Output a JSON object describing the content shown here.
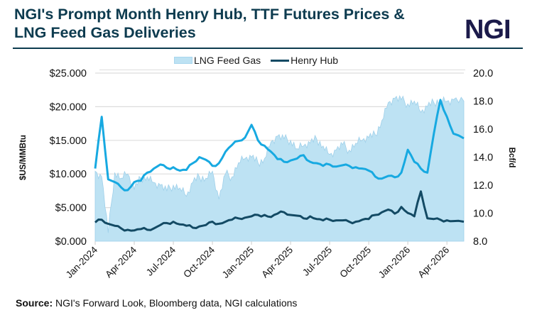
{
  "header": {
    "title_line1": "NGI's Prompt Month Henry Hub, TTF Futures Prices &",
    "title_line2": "LNG Feed Gas Deliveries",
    "logo_text": "NGI"
  },
  "footer": {
    "source_label": "Source:",
    "source_text": " NGI's Forward Look, Bloomberg data, NGI calculations"
  },
  "colors": {
    "title": "#0d3b4f",
    "logo": "#1b1a4a",
    "lng_fill": "#bde2f3",
    "lng_edge": "#9fd0ea",
    "ttf_line": "#17a9e1",
    "henry_hub_line": "#134a64",
    "grid": "#dddddd"
  },
  "chart_data": {
    "type": "line",
    "title": "NGI's Prompt Month Henry Hub, TTF Futures Prices & LNG Feed Gas Deliveries",
    "ylabel": "$US/MMBtu",
    "y2label": "Bcf/d",
    "ylim": [
      0,
      25
    ],
    "y2lim": [
      8,
      20
    ],
    "yticks": [
      "$0.000",
      "$5.000",
      "$10.000",
      "$15.000",
      "$20.000",
      "$25.000"
    ],
    "y2ticks": [
      "8.0",
      "10.0",
      "12.0",
      "14.0",
      "16.0",
      "18.0",
      "20.0"
    ],
    "xticks": [
      "Jan-2024",
      "Apr-2024",
      "Jul-2024",
      "Oct-2024",
      "Jan-2025",
      "Apr-2025",
      "Jul-2025",
      "Oct-2025",
      "Jan-2026",
      "Apr-2026"
    ],
    "grid": true,
    "legend_position": "top",
    "x_unit": "months since Jan-2024",
    "x": [
      0,
      0.5,
      1,
      1.5,
      2,
      2.5,
      3,
      3.5,
      4,
      4.5,
      5,
      5.5,
      6,
      6.5,
      7,
      7.5,
      8,
      8.5,
      9,
      9.5,
      10,
      10.5,
      11,
      11.5,
      12,
      12.5,
      13,
      13.5,
      14,
      14.5,
      15,
      15.5,
      16,
      16.5,
      17,
      17.5,
      18,
      18.5,
      19,
      19.5,
      20,
      20.5,
      21,
      21.5,
      22,
      22.5,
      23,
      23.5,
      24,
      24.5,
      25,
      25.5,
      26,
      26.5,
      27,
      27.5,
      28.3
    ],
    "series": [
      {
        "name": "LNG Feed Gas",
        "legend": "LNG Feed Gas",
        "axis": "right",
        "style": "area",
        "values": [
          13.0,
          12.6,
          8.6,
          12.9,
          12.5,
          12.8,
          11.7,
          12.5,
          12.6,
          12.2,
          12.0,
          11.6,
          12.0,
          11.8,
          11.2,
          12.2,
          12.6,
          12.5,
          13.0,
          11.0,
          12.8,
          12.6,
          13.6,
          13.9,
          14.0,
          13.6,
          13.9,
          15.1,
          15.5,
          15.3,
          15.2,
          14.6,
          14.8,
          15.0,
          15.3,
          14.8,
          14.2,
          14.5,
          14.9,
          14.5,
          15.0,
          15.2,
          15.4,
          15.6,
          16.6,
          17.9,
          18.2,
          18.1,
          17.8,
          18.0,
          17.2,
          17.6,
          17.9,
          18.1,
          18.0,
          18.1,
          18.0
        ]
      },
      {
        "name": "TTF",
        "axis": "left",
        "style": "line",
        "values": [
          10.8,
          18.5,
          9.2,
          8.8,
          8.0,
          7.6,
          8.8,
          9.0,
          10.2,
          10.8,
          11.4,
          10.9,
          11.0,
          10.5,
          10.6,
          11.6,
          12.5,
          12.1,
          11.2,
          11.6,
          13.3,
          14.3,
          14.9,
          15.4,
          17.3,
          15.0,
          14.2,
          13.3,
          12.2,
          11.8,
          12.0,
          12.3,
          12.8,
          11.8,
          11.6,
          11.2,
          11.4,
          11.1,
          11.3,
          11.2,
          11.0,
          10.8,
          10.5,
          9.6,
          9.3,
          9.7,
          9.5,
          10.2,
          13.6,
          11.8,
          10.8,
          10.2,
          16.0,
          21.0,
          18.5,
          16.0,
          15.3
        ]
      },
      {
        "name": "Henry Hub",
        "legend": "Henry Hub",
        "axis": "left",
        "style": "line",
        "values": [
          2.8,
          3.2,
          2.6,
          2.3,
          1.9,
          1.7,
          1.6,
          1.8,
          1.7,
          1.9,
          2.4,
          2.7,
          2.9,
          2.5,
          2.3,
          2.0,
          2.2,
          2.4,
          2.9,
          2.6,
          2.9,
          3.2,
          3.4,
          3.5,
          3.7,
          3.9,
          3.9,
          3.6,
          4.1,
          4.3,
          3.9,
          3.8,
          3.4,
          3.7,
          3.3,
          3.1,
          3.2,
          3.1,
          3.1,
          2.9,
          2.9,
          3.2,
          3.3,
          3.9,
          4.3,
          4.7,
          4.1,
          5.1,
          4.2,
          3.7,
          7.4,
          3.4,
          3.3,
          3.2,
          3.1,
          3.0,
          2.9
        ]
      }
    ]
  }
}
